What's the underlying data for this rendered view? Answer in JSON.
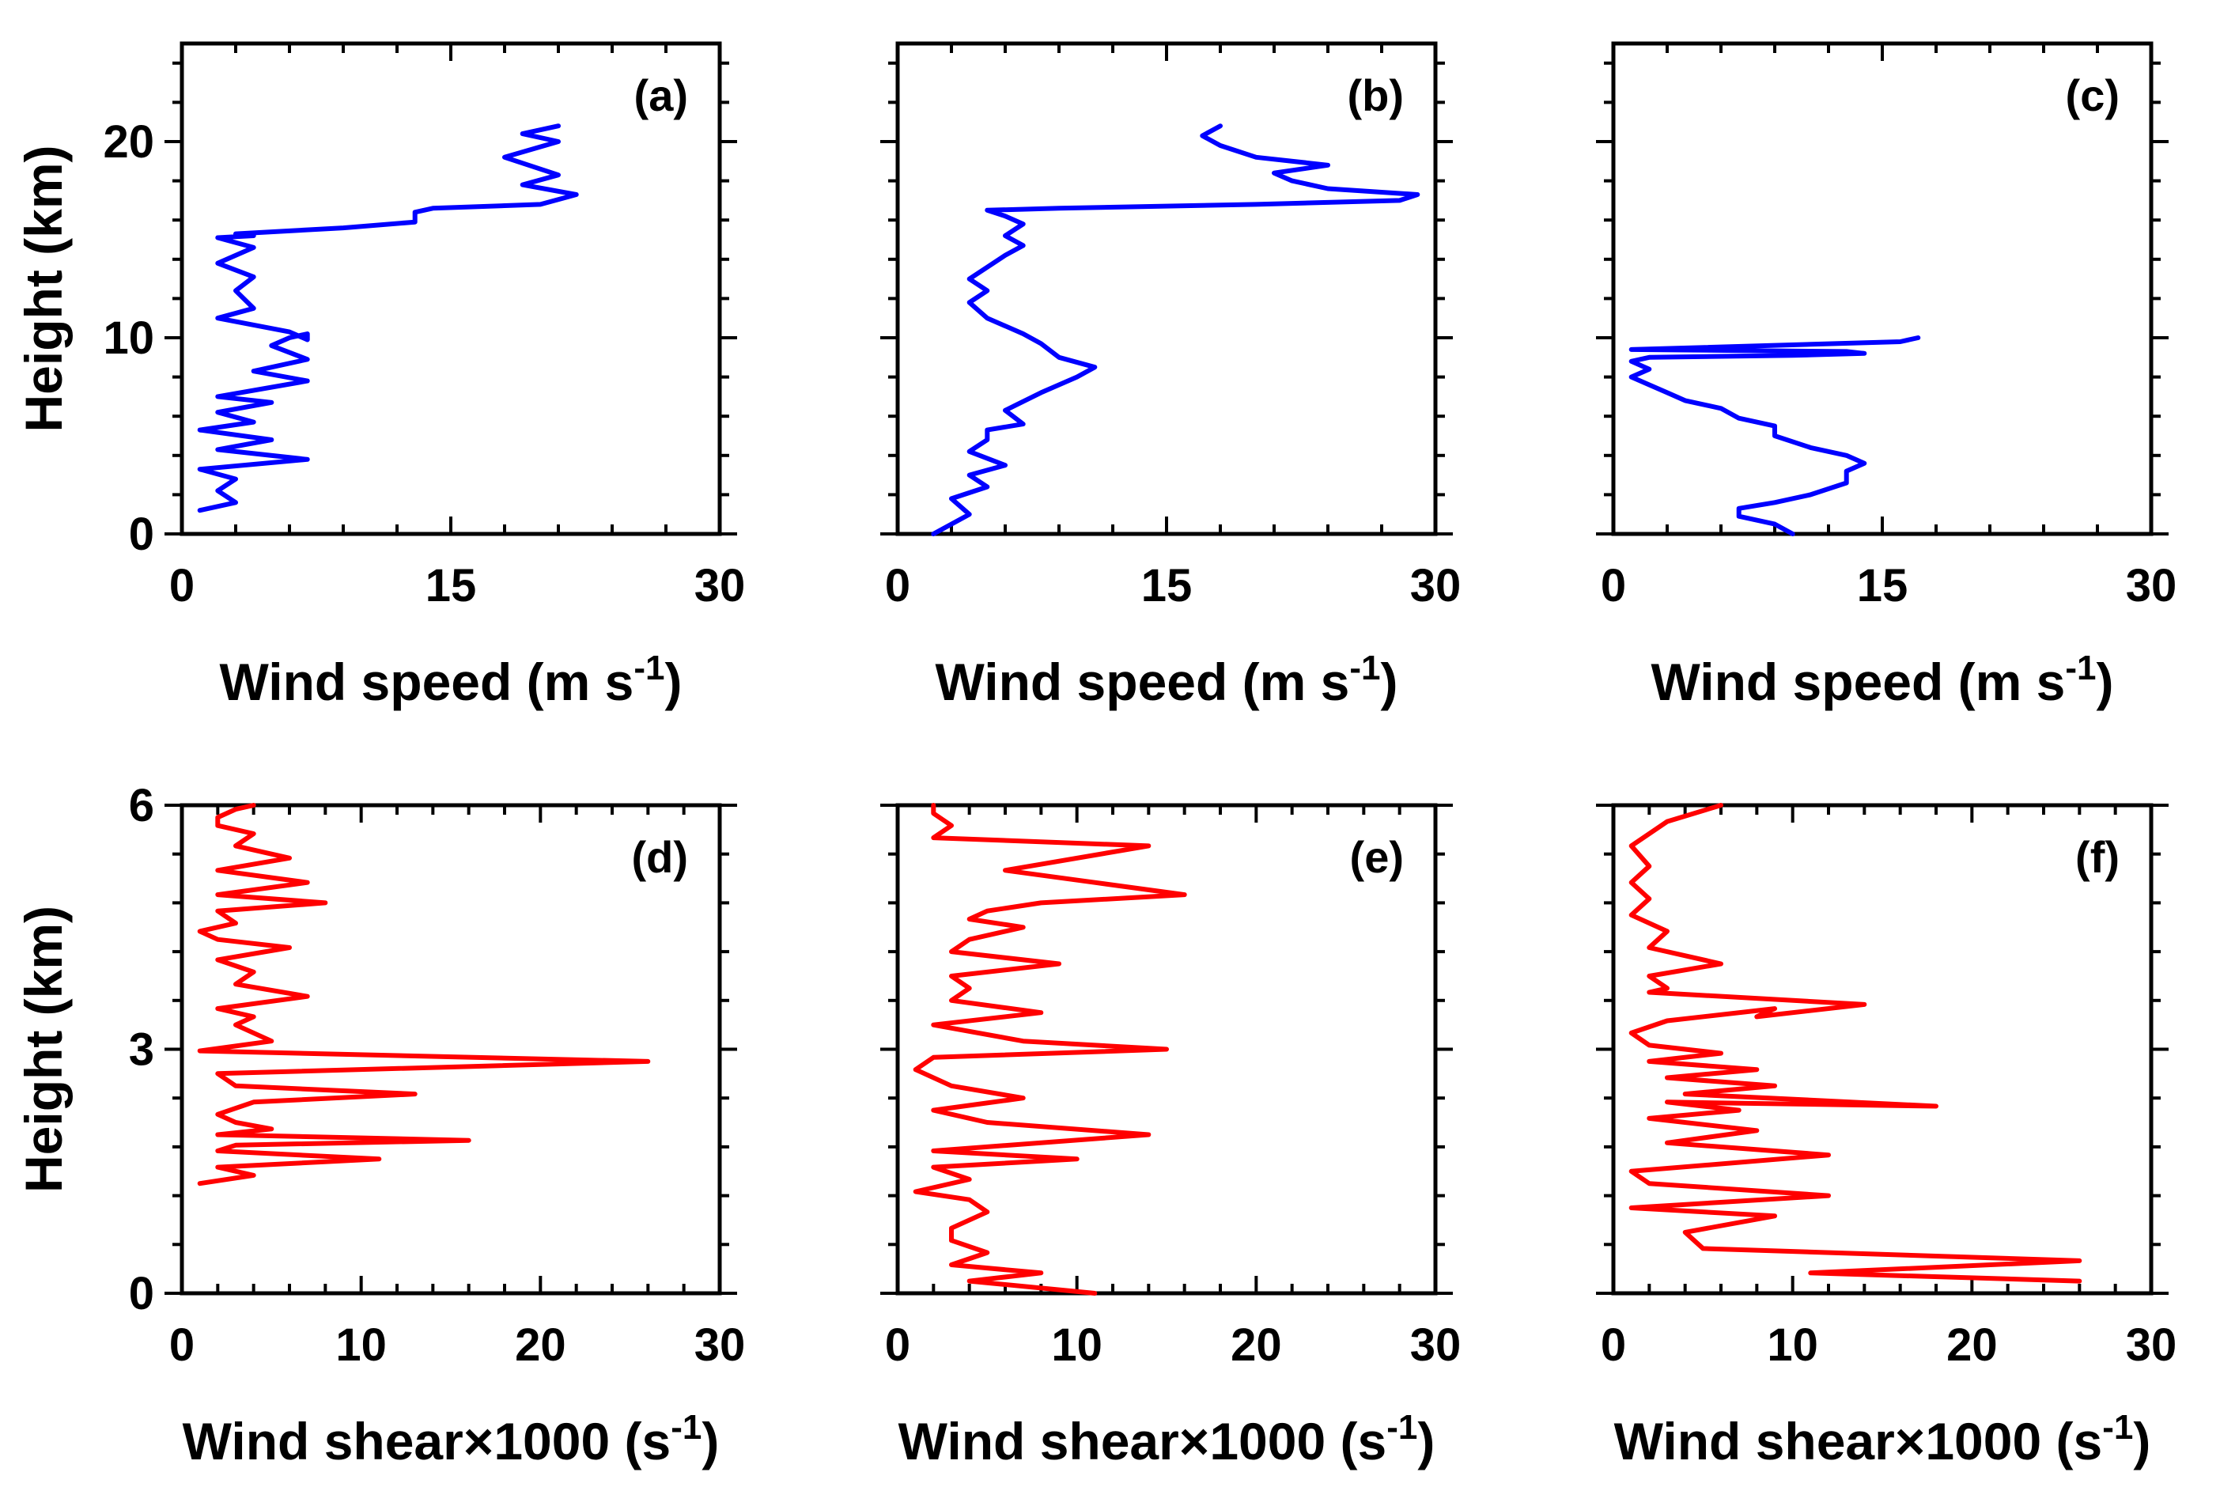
{
  "colors": {
    "speed": "#0000ff",
    "shear": "#ff0000",
    "axes": "#000000",
    "background": "#ffffff"
  },
  "chart_data": [
    {
      "panel": "(a)",
      "type": "line",
      "orientation": "vertical-profile",
      "xlabel": "Wind speed (m s",
      "xlabel_sup": "-1",
      "xlabel_tail": ")",
      "ylabel": "Height (km)",
      "xlim": [
        0,
        30
      ],
      "ylim": [
        0,
        25
      ],
      "xticks": [
        0,
        15,
        30
      ],
      "yticks": [
        0,
        10,
        20
      ],
      "x": [
        1,
        3,
        2,
        3,
        1,
        7,
        2,
        5,
        1,
        4,
        2,
        5,
        2,
        7,
        4,
        7,
        5,
        6,
        7,
        7,
        6,
        2,
        4,
        3,
        4,
        2,
        4,
        2,
        4,
        3,
        3,
        9,
        13,
        13,
        14,
        20,
        22,
        19,
        21,
        18,
        21,
        19,
        21
      ],
      "y": [
        1.2,
        1.6,
        2.2,
        2.8,
        3.3,
        3.8,
        4.3,
        4.8,
        5.3,
        5.7,
        6.2,
        6.7,
        7.0,
        7.8,
        8.3,
        8.9,
        9.6,
        10.0,
        10.2,
        9.9,
        10.3,
        11.0,
        11.5,
        12.4,
        13.1,
        13.8,
        14.6,
        15.1,
        15.2,
        15.2,
        15.3,
        15.6,
        15.9,
        16.4,
        16.6,
        16.8,
        17.3,
        17.8,
        18.3,
        19.2,
        20.0,
        20.4,
        20.8
      ]
    },
    {
      "panel": "(b)",
      "type": "line",
      "orientation": "vertical-profile",
      "xlabel": "Wind speed (m s",
      "xlabel_sup": "-1",
      "xlabel_tail": ")",
      "ylabel": "Height (km)",
      "xlim": [
        0,
        30
      ],
      "ylim": [
        0,
        25
      ],
      "xticks": [
        0,
        15,
        30
      ],
      "yticks": [
        0,
        10,
        20
      ],
      "x": [
        2,
        3,
        4,
        3,
        5,
        4,
        6,
        4,
        5,
        5,
        7,
        6,
        8,
        9,
        10,
        11,
        9,
        8,
        7,
        6,
        5,
        4,
        5,
        4,
        5,
        6,
        7,
        6,
        7,
        6,
        5,
        9,
        20,
        28,
        29,
        24,
        22,
        21,
        24,
        20,
        18,
        17,
        18
      ],
      "y": [
        0.0,
        0.5,
        1.0,
        1.8,
        2.4,
        3.0,
        3.5,
        4.2,
        4.8,
        5.3,
        5.6,
        6.3,
        7.2,
        7.6,
        8.0,
        8.5,
        9.0,
        9.7,
        10.2,
        10.6,
        11.0,
        11.8,
        12.4,
        13.0,
        13.6,
        14.2,
        14.7,
        15.2,
        15.8,
        16.2,
        16.5,
        16.6,
        16.8,
        17.0,
        17.3,
        17.6,
        18.0,
        18.4,
        18.8,
        19.2,
        19.8,
        20.3,
        20.8
      ]
    },
    {
      "panel": "(c)",
      "type": "line",
      "orientation": "vertical-profile",
      "xlabel": "Wind speed (m s",
      "xlabel_sup": "-1",
      "xlabel_tail": ")",
      "ylabel": "Height (km)",
      "xlim": [
        0,
        30
      ],
      "ylim": [
        0,
        25
      ],
      "xticks": [
        0,
        15,
        30
      ],
      "yticks": [
        0,
        10,
        20
      ],
      "x": [
        10,
        9,
        7,
        7,
        9,
        11,
        13,
        13,
        14,
        13,
        11,
        9,
        9,
        7,
        6,
        4,
        3,
        2,
        1,
        2,
        1,
        2,
        10,
        14,
        13,
        1,
        16,
        17
      ],
      "y": [
        0.0,
        0.5,
        0.9,
        1.3,
        1.6,
        2.0,
        2.6,
        3.2,
        3.6,
        4.0,
        4.4,
        5.0,
        5.5,
        5.9,
        6.4,
        6.8,
        7.2,
        7.6,
        8.0,
        8.4,
        8.8,
        9.0,
        9.1,
        9.2,
        9.3,
        9.4,
        9.8,
        10.0
      ]
    },
    {
      "panel": "(d)",
      "type": "line",
      "orientation": "vertical-profile",
      "xlabel": "Wind shear×1000 (s",
      "xlabel_sup": "-1",
      "xlabel_tail": ")",
      "ylabel": "Height (km)",
      "xlim": [
        0,
        30
      ],
      "ylim": [
        0,
        6
      ],
      "xticks": [
        0,
        10,
        20,
        30
      ],
      "yticks": [
        0,
        3,
        6
      ],
      "x": [
        1,
        4,
        2,
        11,
        2,
        3,
        16,
        2,
        5,
        3,
        2,
        4,
        13,
        3,
        2,
        26,
        1,
        5,
        3,
        4,
        2,
        7,
        3,
        4,
        2,
        6,
        2,
        1,
        3,
        2,
        8,
        2,
        7,
        2,
        6,
        3,
        4,
        2,
        2,
        3,
        4
      ],
      "y": [
        1.35,
        1.45,
        1.55,
        1.65,
        1.75,
        1.82,
        1.88,
        1.95,
        2.02,
        2.1,
        2.2,
        2.35,
        2.45,
        2.55,
        2.7,
        2.85,
        2.98,
        3.1,
        3.3,
        3.4,
        3.5,
        3.65,
        3.8,
        3.95,
        4.1,
        4.25,
        4.35,
        4.45,
        4.55,
        4.7,
        4.8,
        4.9,
        5.05,
        5.2,
        5.35,
        5.5,
        5.65,
        5.75,
        5.85,
        5.95,
        6.0
      ]
    },
    {
      "panel": "(e)",
      "type": "line",
      "orientation": "vertical-profile",
      "xlabel": "Wind shear×1000 (s",
      "xlabel_sup": "-1",
      "xlabel_tail": ")",
      "ylabel": "Height (km)",
      "xlim": [
        0,
        30
      ],
      "ylim": [
        0,
        6
      ],
      "xticks": [
        0,
        10,
        20,
        30
      ],
      "yticks": [
        0,
        3,
        6
      ],
      "x": [
        11,
        4,
        8,
        3,
        5,
        3,
        3,
        5,
        4,
        1,
        4,
        2,
        10,
        2,
        14,
        5,
        2,
        7,
        3,
        1,
        2,
        15,
        7,
        2,
        8,
        3,
        4,
        3,
        9,
        3,
        4,
        7,
        4,
        5,
        8,
        16,
        11,
        6,
        14,
        2,
        3,
        2,
        2
      ],
      "y": [
        0.0,
        0.15,
        0.25,
        0.35,
        0.5,
        0.65,
        0.8,
        1.0,
        1.15,
        1.25,
        1.4,
        1.55,
        1.65,
        1.75,
        1.95,
        2.1,
        2.25,
        2.4,
        2.55,
        2.75,
        2.9,
        3.0,
        3.1,
        3.3,
        3.45,
        3.6,
        3.75,
        3.9,
        4.05,
        4.2,
        4.35,
        4.5,
        4.6,
        4.7,
        4.8,
        4.9,
        5.05,
        5.2,
        5.5,
        5.6,
        5.75,
        5.9,
        6.0
      ]
    },
    {
      "panel": "(f)",
      "type": "line",
      "orientation": "vertical-profile",
      "xlabel": "Wind shear×1000 (s",
      "xlabel_sup": "-1",
      "xlabel_tail": ")",
      "ylabel": "Height (km)",
      "xlim": [
        0,
        30
      ],
      "ylim": [
        0,
        6
      ],
      "xticks": [
        0,
        10,
        20,
        30
      ],
      "yticks": [
        0,
        3,
        6
      ],
      "x": [
        26,
        11,
        26,
        5,
        4,
        9,
        1,
        12,
        2,
        1,
        12,
        3,
        8,
        2,
        7,
        3,
        18,
        4,
        9,
        3,
        8,
        2,
        6,
        2,
        1,
        3,
        9,
        8,
        14,
        2,
        3,
        2,
        6,
        2,
        3,
        1,
        2,
        1,
        2,
        1,
        3,
        6
      ],
      "y": [
        0.15,
        0.25,
        0.4,
        0.55,
        0.75,
        0.95,
        1.05,
        1.2,
        1.35,
        1.5,
        1.7,
        1.85,
        2.0,
        2.15,
        2.25,
        2.35,
        2.3,
        2.45,
        2.55,
        2.65,
        2.75,
        2.85,
        2.95,
        3.05,
        3.2,
        3.35,
        3.5,
        3.4,
        3.55,
        3.7,
        3.75,
        3.9,
        4.05,
        4.25,
        4.45,
        4.65,
        4.85,
        5.05,
        5.25,
        5.5,
        5.8,
        6.0
      ]
    }
  ]
}
